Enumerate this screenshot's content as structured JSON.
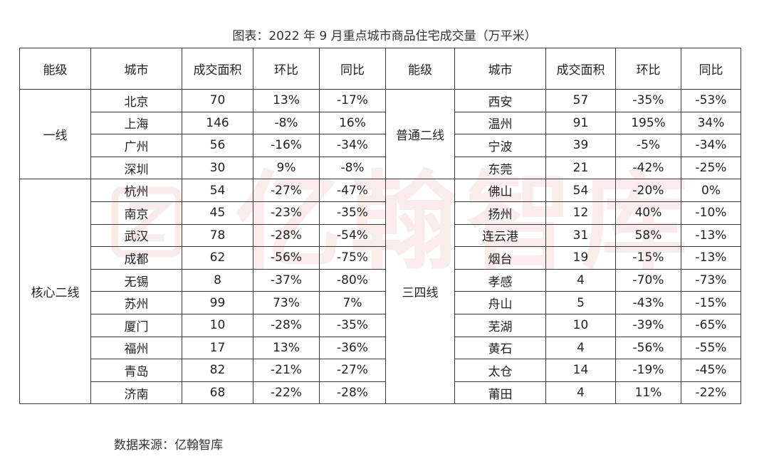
{
  "title": "图表：2022 年 9 月重点城市商品住宅成交量（万平米）",
  "headers": [
    "能级",
    "城市",
    "成交面积",
    "环比",
    "同比",
    "能级",
    "城市",
    "成交面积",
    "环比",
    "同比"
  ],
  "left_groups": [
    {
      "tier": "一线",
      "rows": [
        {
          "city": "北京",
          "area": "70",
          "mom": "13%",
          "yoy": "-17%"
        },
        {
          "city": "上海",
          "area": "146",
          "mom": "-8%",
          "yoy": "16%"
        },
        {
          "city": "广州",
          "area": "56",
          "mom": "-16%",
          "yoy": "-34%"
        },
        {
          "city": "深圳",
          "area": "30",
          "mom": "9%",
          "yoy": "-8%"
        }
      ]
    },
    {
      "tier": "核心二线",
      "rows": [
        {
          "city": "杭州",
          "area": "54",
          "mom": "-27%",
          "yoy": "-47%"
        },
        {
          "city": "南京",
          "area": "45",
          "mom": "-23%",
          "yoy": "-35%"
        },
        {
          "city": "武汉",
          "area": "78",
          "mom": "-28%",
          "yoy": "-54%"
        },
        {
          "city": "成都",
          "area": "62",
          "mom": "-56%",
          "yoy": "-75%"
        },
        {
          "city": "无锡",
          "area": "8",
          "mom": "-37%",
          "yoy": "-80%"
        },
        {
          "city": "苏州",
          "area": "99",
          "mom": "73%",
          "yoy": "7%"
        },
        {
          "city": "厦门",
          "area": "10",
          "mom": "-28%",
          "yoy": "-35%"
        },
        {
          "city": "福州",
          "area": "17",
          "mom": "13%",
          "yoy": "-36%"
        },
        {
          "city": "青岛",
          "area": "82",
          "mom": "-21%",
          "yoy": "-27%"
        },
        {
          "city": "济南",
          "area": "68",
          "mom": "-22%",
          "yoy": "-28%"
        }
      ]
    }
  ],
  "right_groups": [
    {
      "tier": "普通二线",
      "rows": [
        {
          "city": "西安",
          "area": "57",
          "mom": "-35%",
          "yoy": "-53%"
        },
        {
          "city": "温州",
          "area": "91",
          "mom": "195%",
          "yoy": "34%"
        },
        {
          "city": "宁波",
          "area": "39",
          "mom": "-5%",
          "yoy": "-34%"
        },
        {
          "city": "东莞",
          "area": "21",
          "mom": "-42%",
          "yoy": "-25%"
        }
      ]
    },
    {
      "tier": "三四线",
      "rows": [
        {
          "city": "佛山",
          "area": "54",
          "mom": "-20%",
          "yoy": "0%"
        },
        {
          "city": "扬州",
          "area": "12",
          "mom": "40%",
          "yoy": "-10%"
        },
        {
          "city": "连云港",
          "area": "31",
          "mom": "58%",
          "yoy": "-13%"
        },
        {
          "city": "烟台",
          "area": "19",
          "mom": "-15%",
          "yoy": "-13%"
        },
        {
          "city": "孝感",
          "area": "4",
          "mom": "-70%",
          "yoy": "-73%"
        },
        {
          "city": "舟山",
          "area": "5",
          "mom": "-43%",
          "yoy": "-15%"
        },
        {
          "city": "芜湖",
          "area": "10",
          "mom": "-39%",
          "yoy": "-65%"
        },
        {
          "city": "黄石",
          "area": "4",
          "mom": "-56%",
          "yoy": "-55%"
        },
        {
          "city": "太仓",
          "area": "14",
          "mom": "-19%",
          "yoy": "-45%"
        },
        {
          "city": "莆田",
          "area": "4",
          "mom": "11%",
          "yoy": "-22%"
        }
      ]
    }
  ],
  "source": "数据来源：亿翰智库",
  "watermark": {
    "text": "亿翰智库",
    "color": "#c81c1c"
  }
}
